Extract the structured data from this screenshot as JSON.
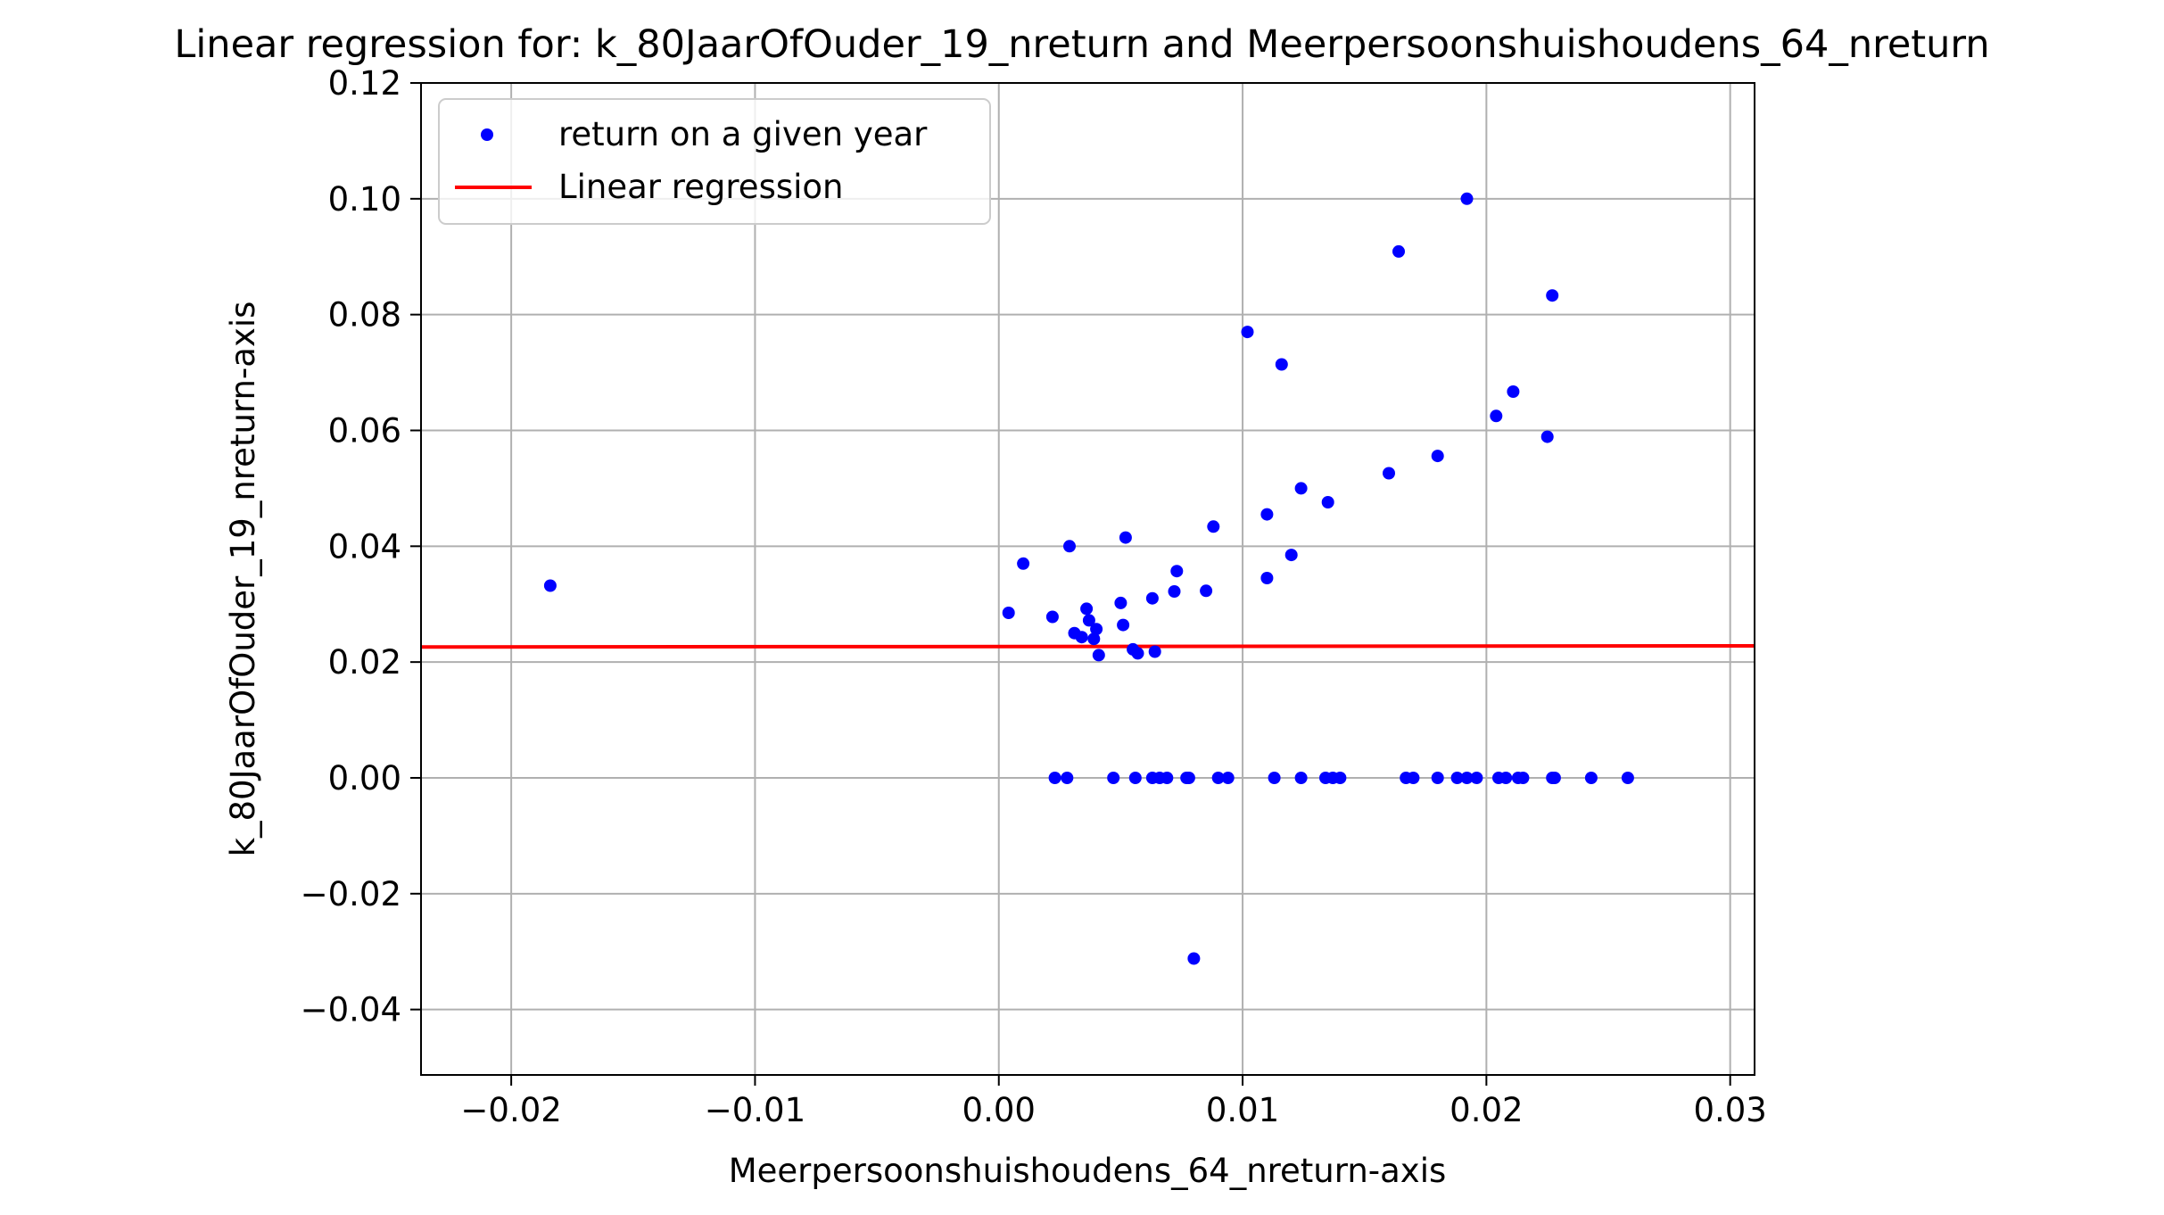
{
  "chart_data": {
    "type": "scatter",
    "title": "Linear regression for: k_80JaarOfOuder_19_nreturn and Meerpersoonshuishoudens_64_nreturn",
    "xlabel": "Meerpersoonshuishoudens_64_nreturn-axis",
    "ylabel": "k_80JaarOfOuder_19_nreturn-axis",
    "xlim": [
      -0.0237,
      0.031
    ],
    "ylim": [
      -0.0513,
      0.12
    ],
    "grid": true,
    "legend_position": "top-left",
    "x_ticks": [
      {
        "value": -0.02,
        "label": "−0.02"
      },
      {
        "value": -0.01,
        "label": "−0.01"
      },
      {
        "value": 0.0,
        "label": "0.00"
      },
      {
        "value": 0.01,
        "label": "0.01"
      },
      {
        "value": 0.02,
        "label": "0.02"
      },
      {
        "value": 0.03,
        "label": "0.03"
      }
    ],
    "y_ticks": [
      {
        "value": -0.04,
        "label": "−0.04"
      },
      {
        "value": -0.02,
        "label": "−0.02"
      },
      {
        "value": 0.0,
        "label": "0.00"
      },
      {
        "value": 0.02,
        "label": "0.02"
      },
      {
        "value": 0.04,
        "label": "0.04"
      },
      {
        "value": 0.06,
        "label": "0.06"
      },
      {
        "value": 0.08,
        "label": "0.08"
      },
      {
        "value": 0.1,
        "label": "0.10"
      },
      {
        "value": 0.12,
        "label": "0.12"
      }
    ],
    "series": [
      {
        "name": "return on a given year",
        "kind": "scatter",
        "color": "#0000ff",
        "points": [
          [
            -0.0184,
            0.0332
          ],
          [
            0.0004,
            0.0285
          ],
          [
            0.001,
            0.037
          ],
          [
            0.0022,
            0.0278
          ],
          [
            0.0029,
            0.04
          ],
          [
            0.0031,
            0.025
          ],
          [
            0.0034,
            0.0243
          ],
          [
            0.0036,
            0.0292
          ],
          [
            0.0037,
            0.0272
          ],
          [
            0.0039,
            0.024
          ],
          [
            0.004,
            0.0257
          ],
          [
            0.0041,
            0.0212
          ],
          [
            0.005,
            0.0302
          ],
          [
            0.0051,
            0.0264
          ],
          [
            0.0052,
            0.0415
          ],
          [
            0.0055,
            0.0222
          ],
          [
            0.0057,
            0.0215
          ],
          [
            0.0063,
            0.031
          ],
          [
            0.0064,
            0.0218
          ],
          [
            0.0072,
            0.0322
          ],
          [
            0.0073,
            0.0357
          ],
          [
            0.0085,
            0.0323
          ],
          [
            0.0088,
            0.0434
          ],
          [
            0.0102,
            0.077
          ],
          [
            0.011,
            0.0455
          ],
          [
            0.011,
            0.0345
          ],
          [
            0.0116,
            0.0714
          ],
          [
            0.012,
            0.0385
          ],
          [
            0.0124,
            0.05
          ],
          [
            0.0135,
            0.0476
          ],
          [
            0.016,
            0.0526
          ],
          [
            0.0164,
            0.0909
          ],
          [
            0.018,
            0.0556
          ],
          [
            0.0192,
            0.1
          ],
          [
            0.0204,
            0.0625
          ],
          [
            0.0211,
            0.0667
          ],
          [
            0.0225,
            0.0589
          ],
          [
            0.0227,
            0.0833
          ],
          [
            0.008,
            -0.0312
          ],
          [
            0.0023,
            0.0
          ],
          [
            0.0028,
            0.0
          ],
          [
            0.0047,
            0.0
          ],
          [
            0.0056,
            0.0
          ],
          [
            0.0063,
            0.0
          ],
          [
            0.0066,
            0.0
          ],
          [
            0.0069,
            0.0
          ],
          [
            0.0077,
            0.0
          ],
          [
            0.0078,
            0.0
          ],
          [
            0.009,
            0.0
          ],
          [
            0.0094,
            0.0
          ],
          [
            0.0113,
            0.0
          ],
          [
            0.0124,
            0.0
          ],
          [
            0.0134,
            0.0
          ],
          [
            0.0137,
            0.0
          ],
          [
            0.014,
            0.0
          ],
          [
            0.0167,
            0.0
          ],
          [
            0.017,
            0.0
          ],
          [
            0.018,
            0.0
          ],
          [
            0.0188,
            0.0
          ],
          [
            0.0192,
            0.0
          ],
          [
            0.0196,
            0.0
          ],
          [
            0.0205,
            0.0
          ],
          [
            0.0208,
            0.0
          ],
          [
            0.0213,
            0.0
          ],
          [
            0.0215,
            0.0
          ],
          [
            0.0227,
            0.0
          ],
          [
            0.0228,
            0.0
          ],
          [
            0.0243,
            0.0
          ],
          [
            0.0258,
            0.0
          ]
        ]
      },
      {
        "name": "Linear regression",
        "kind": "line",
        "color": "#ff0000",
        "points": [
          [
            -0.0237,
            0.0226
          ],
          [
            0.031,
            0.0228
          ]
        ]
      }
    ]
  }
}
